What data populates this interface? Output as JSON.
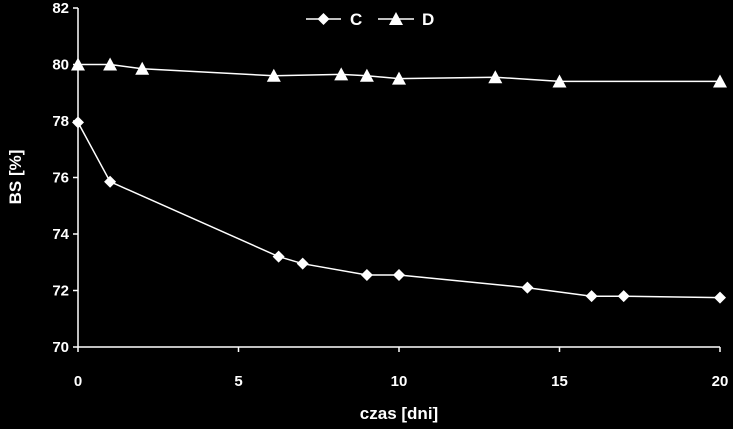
{
  "chart_data": {
    "type": "line",
    "xlabel": "czas [dni]",
    "ylabel": "BS [%]",
    "xlim": [
      0,
      20
    ],
    "ylim": [
      70,
      82
    ],
    "x_ticks": [
      0,
      5,
      10,
      15,
      20
    ],
    "y_ticks": [
      70,
      72,
      74,
      76,
      78,
      80,
      82
    ],
    "grid": false,
    "legend_position": "top-center",
    "colors": {
      "background": "#000000",
      "foreground": "#ffffff"
    },
    "series": [
      {
        "name": "C",
        "marker": "diamond",
        "x": [
          0,
          1,
          6.25,
          7,
          9,
          10,
          14,
          16,
          17,
          20
        ],
        "y": [
          77.95,
          75.85,
          73.2,
          72.95,
          72.55,
          72.55,
          72.1,
          71.8,
          71.8,
          71.75
        ]
      },
      {
        "name": "D",
        "marker": "triangle",
        "x": [
          0,
          1,
          2,
          6.1,
          8.2,
          9,
          10,
          13,
          15,
          20
        ],
        "y": [
          80,
          80,
          79.85,
          79.6,
          79.65,
          79.6,
          79.5,
          79.55,
          79.4,
          79.4
        ]
      }
    ]
  }
}
